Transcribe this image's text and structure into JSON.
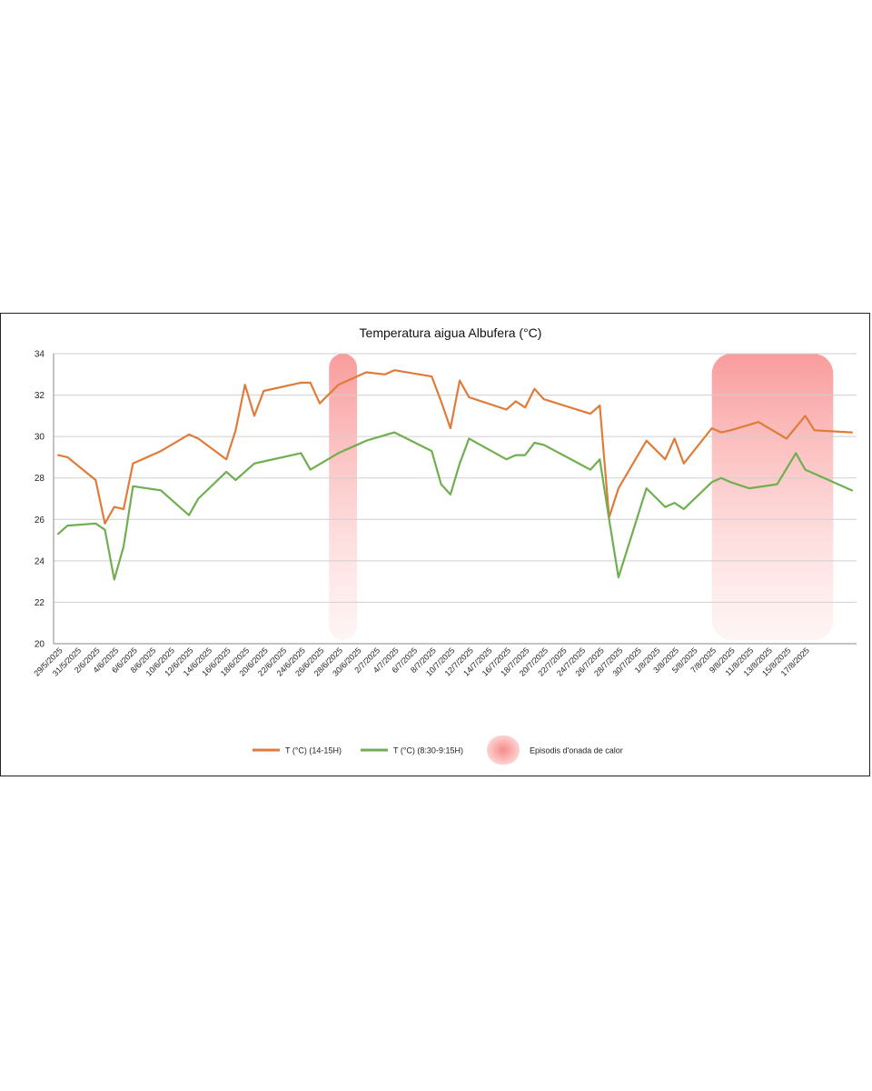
{
  "chart_data": {
    "type": "line",
    "title": "Temperatura aigua Albufera (°C)",
    "xlabel": "",
    "ylabel": "",
    "ylim": [
      20,
      34
    ],
    "yticks": [
      20,
      22,
      24,
      26,
      28,
      30,
      32,
      34
    ],
    "x_start": "29/5/2025",
    "x_end": "19/8/2025",
    "tick_labels": [
      "29/5/2025",
      "31/5/2025",
      "2/6/2025",
      "4/6/2025",
      "6/6/2025",
      "8/6/2025",
      "10/6/2025",
      "12/6/2025",
      "14/6/2025",
      "16/6/2025",
      "18/6/2025",
      "20/6/2025",
      "22/6/2025",
      "24/6/2025",
      "26/6/2025",
      "28/6/2025",
      "30/6/2025",
      "2/7/2025",
      "4/7/2025",
      "6/7/2025",
      "8/7/2025",
      "10/7/2025",
      "12/7/2025",
      "14/7/2025",
      "16/7/2025",
      "18/7/2025",
      "20/7/2025",
      "22/7/2025",
      "24/7/2025",
      "26/7/2025",
      "28/7/2025",
      "30/7/2025",
      "1/8/2025",
      "3/8/2025",
      "5/8/2025",
      "7/8/2025",
      "9/8/2025",
      "11/8/2025",
      "13/8/2025",
      "15/8/2025",
      "17/8/2025"
    ],
    "series": [
      {
        "name": "T (°C) (14-15H)",
        "color": "#E07B39",
        "points": [
          [
            0.5,
            29.1
          ],
          [
            1.5,
            29.0
          ],
          [
            4.5,
            27.9
          ],
          [
            5.5,
            25.8
          ],
          [
            6.5,
            26.6
          ],
          [
            7.5,
            26.5
          ],
          [
            8.5,
            28.7
          ],
          [
            11.5,
            29.3
          ],
          [
            14.5,
            30.1
          ],
          [
            15.5,
            29.9
          ],
          [
            18.5,
            28.9
          ],
          [
            19.5,
            30.3
          ],
          [
            20.5,
            32.5
          ],
          [
            21.5,
            31.0
          ],
          [
            22.5,
            32.2
          ],
          [
            26.5,
            32.6
          ],
          [
            27.5,
            32.6
          ],
          [
            28.5,
            31.6
          ],
          [
            30.5,
            32.5
          ],
          [
            33.5,
            33.1
          ],
          [
            35.5,
            33.0
          ],
          [
            36.5,
            33.2
          ],
          [
            40.5,
            32.9
          ],
          [
            41.5,
            31.7
          ],
          [
            42.5,
            30.4
          ],
          [
            43.5,
            32.7
          ],
          [
            44.5,
            31.9
          ],
          [
            48.5,
            31.3
          ],
          [
            49.5,
            31.7
          ],
          [
            50.5,
            31.4
          ],
          [
            51.5,
            32.3
          ],
          [
            52.5,
            31.8
          ],
          [
            57.5,
            31.1
          ],
          [
            58.5,
            31.5
          ],
          [
            59.5,
            26.1
          ],
          [
            60.5,
            27.5
          ],
          [
            63.5,
            29.8
          ],
          [
            65.5,
            28.9
          ],
          [
            66.5,
            29.9
          ],
          [
            67.5,
            28.7
          ],
          [
            70.5,
            30.4
          ],
          [
            71.5,
            30.2
          ],
          [
            72.5,
            30.3
          ],
          [
            75.5,
            30.7
          ],
          [
            78.5,
            29.9
          ],
          [
            80.5,
            31.0
          ],
          [
            81.5,
            30.3
          ],
          [
            85.5,
            30.2
          ]
        ]
      },
      {
        "name": "T (°C) (8:30-9:15H)",
        "color": "#6FAF4F",
        "points": [
          [
            0.5,
            25.3
          ],
          [
            1.5,
            25.7
          ],
          [
            4.5,
            25.8
          ],
          [
            5.5,
            25.5
          ],
          [
            6.5,
            23.1
          ],
          [
            7.5,
            24.7
          ],
          [
            8.5,
            27.6
          ],
          [
            11.5,
            27.4
          ],
          [
            14.5,
            26.2
          ],
          [
            15.5,
            27.0
          ],
          [
            18.5,
            28.3
          ],
          [
            19.5,
            27.9
          ],
          [
            21.5,
            28.7
          ],
          [
            22.5,
            28.8
          ],
          [
            26.5,
            29.2
          ],
          [
            27.5,
            28.4
          ],
          [
            30.5,
            29.2
          ],
          [
            33.5,
            29.8
          ],
          [
            36.5,
            30.2
          ],
          [
            40.5,
            29.3
          ],
          [
            41.5,
            27.7
          ],
          [
            42.5,
            27.2
          ],
          [
            43.5,
            28.7
          ],
          [
            44.5,
            29.9
          ],
          [
            48.5,
            28.9
          ],
          [
            49.5,
            29.1
          ],
          [
            50.5,
            29.1
          ],
          [
            51.5,
            29.7
          ],
          [
            52.5,
            29.6
          ],
          [
            57.5,
            28.4
          ],
          [
            58.5,
            28.9
          ],
          [
            59.5,
            26.0
          ],
          [
            60.5,
            23.2
          ],
          [
            63.5,
            27.5
          ],
          [
            65.5,
            26.6
          ],
          [
            66.5,
            26.8
          ],
          [
            67.5,
            26.5
          ],
          [
            70.5,
            27.8
          ],
          [
            71.5,
            28.0
          ],
          [
            72.5,
            27.8
          ],
          [
            74.5,
            27.5
          ],
          [
            77.5,
            27.7
          ],
          [
            79.5,
            29.2
          ],
          [
            80.5,
            28.4
          ],
          [
            85.5,
            27.4
          ]
        ]
      }
    ],
    "heatwave_episodes": [
      {
        "from": 29.5,
        "to": 32.5
      },
      {
        "from": 70.5,
        "to": 83.5
      }
    ],
    "legend": [
      {
        "label": "T (°C) (14-15H)",
        "kind": "line",
        "color": "#E07B39"
      },
      {
        "label": "T (°C) (8:30-9:15H)",
        "kind": "line",
        "color": "#6FAF4F"
      },
      {
        "label": "Episodis d'onada de calor",
        "kind": "band",
        "color": "#F77B7B"
      }
    ],
    "legend_position": "bottom"
  }
}
